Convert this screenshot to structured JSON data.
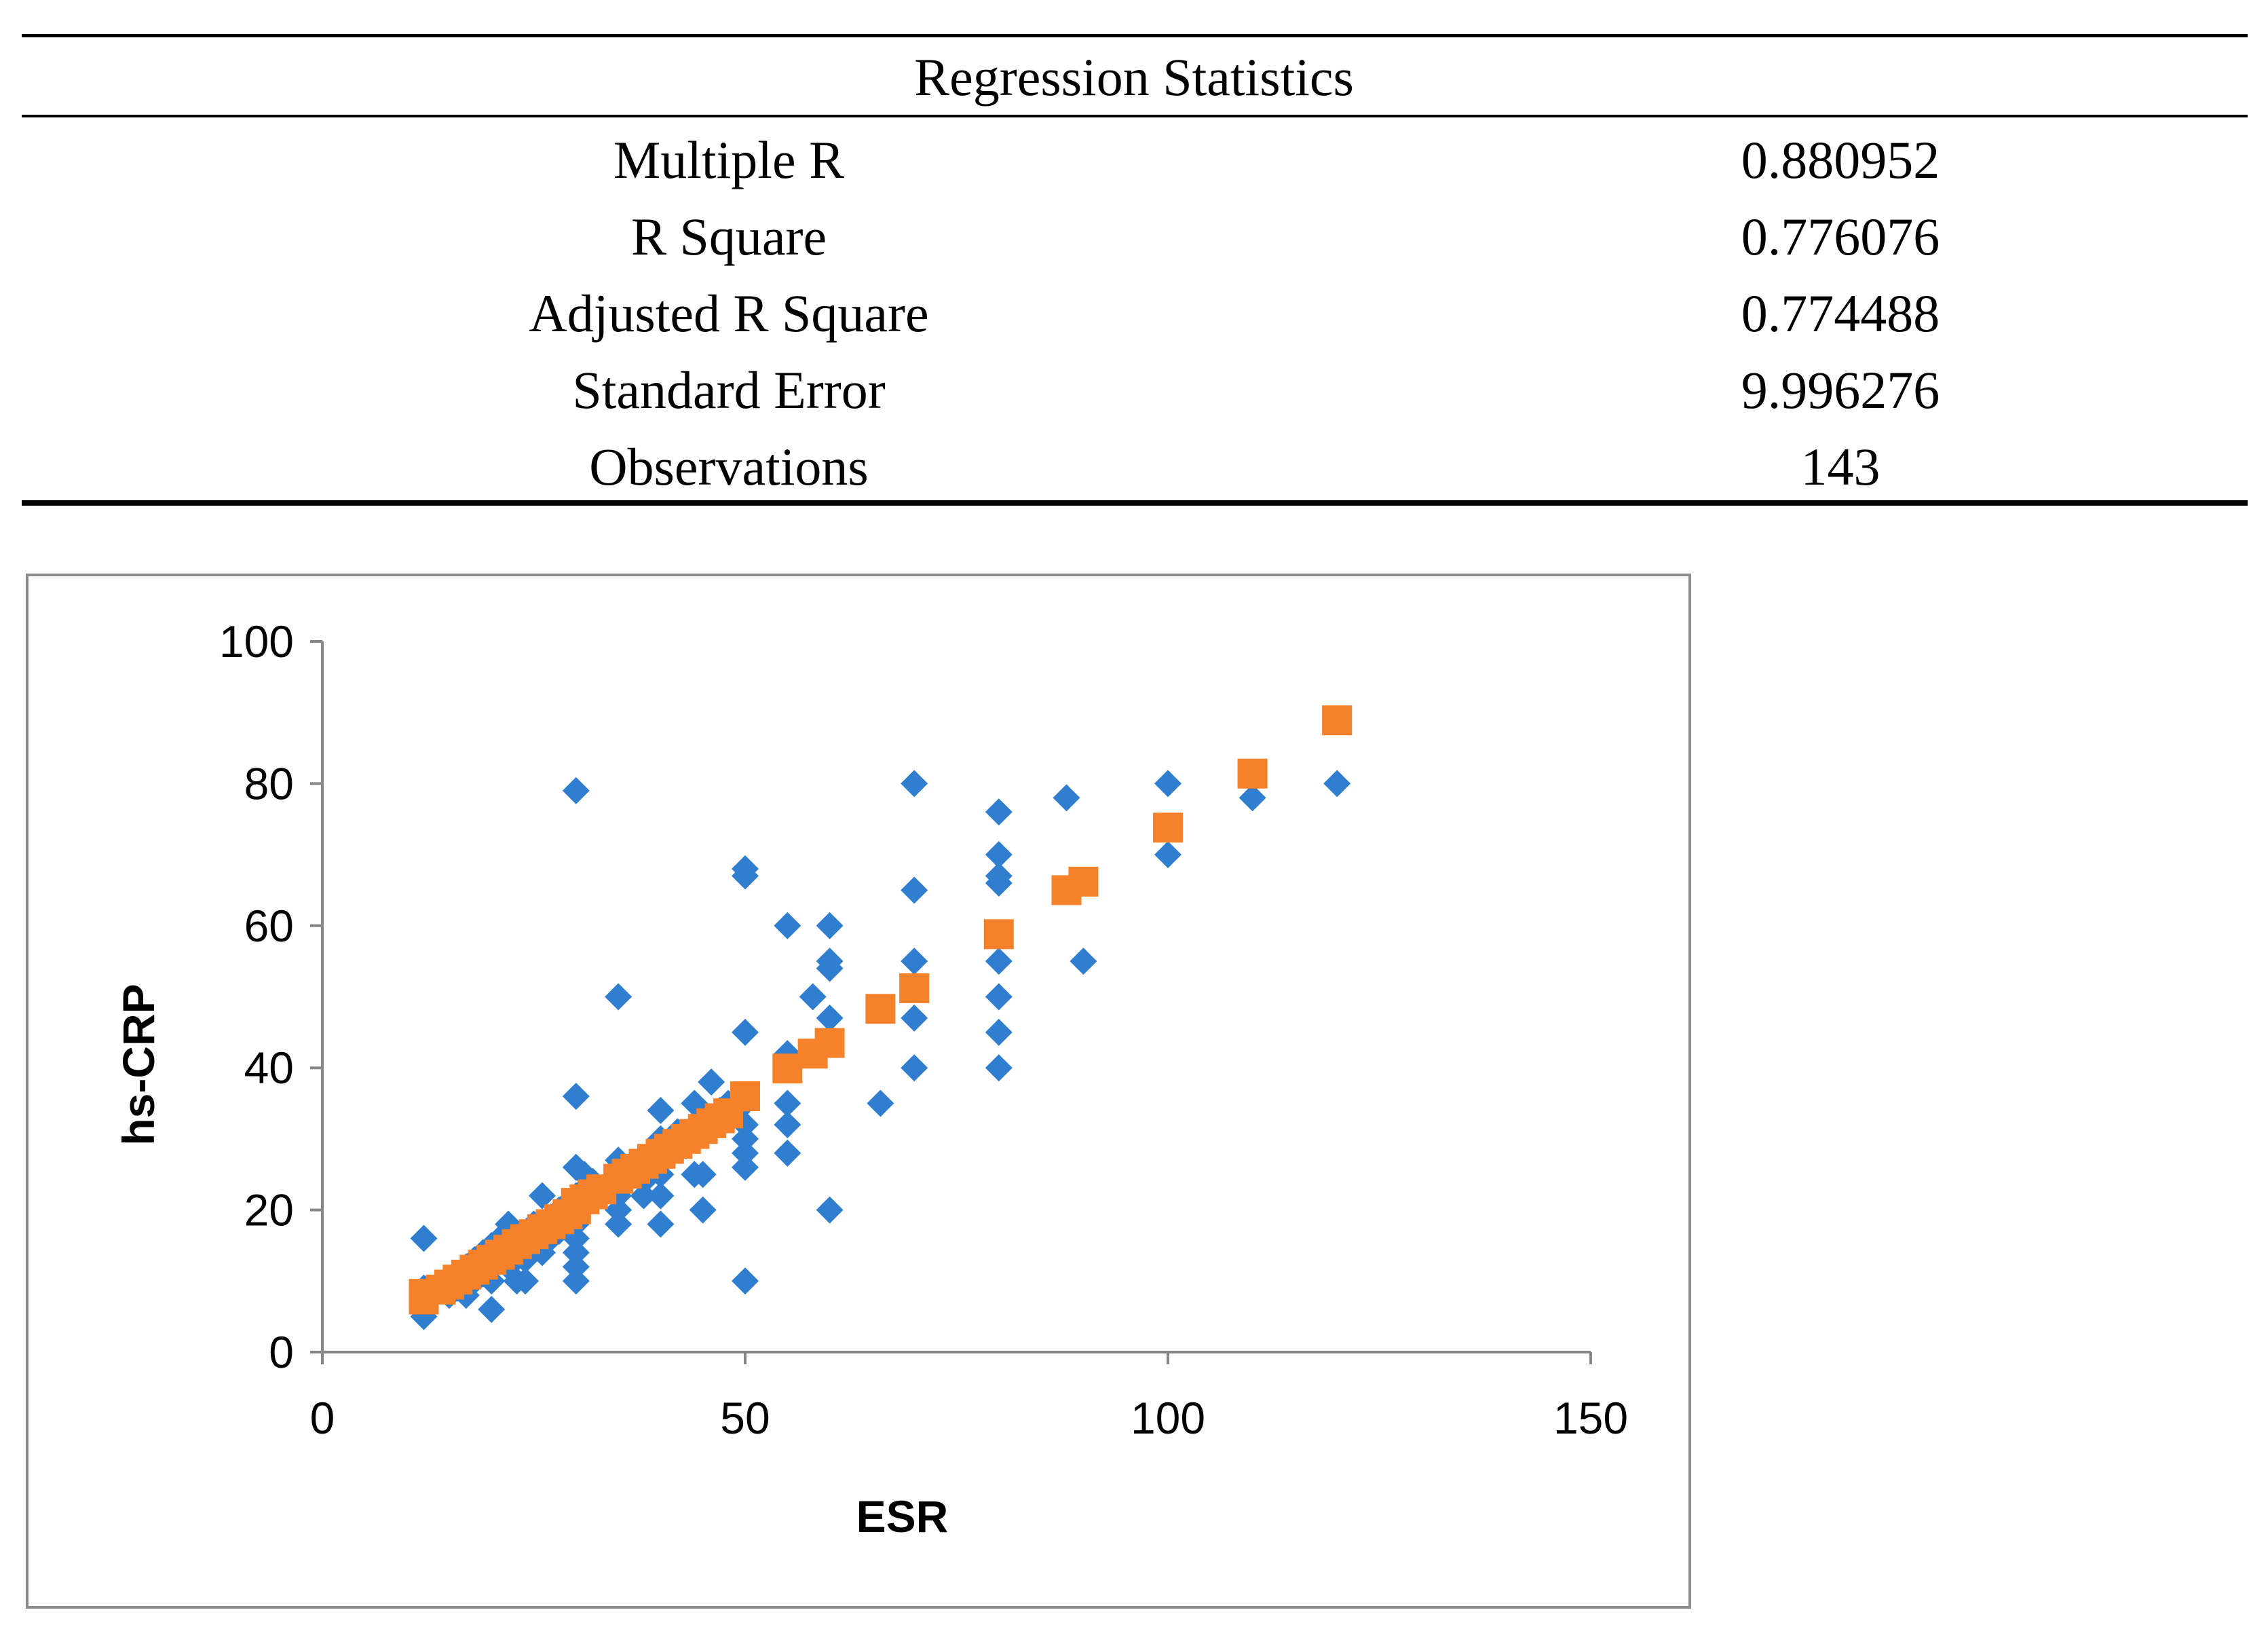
{
  "table": {
    "title": "Regression Statistics",
    "rows": [
      {
        "label": "Multiple R",
        "value": "0.880952"
      },
      {
        "label": "R Square",
        "value": "0.776076"
      },
      {
        "label": "Adjusted R Square",
        "value": "0.774488"
      },
      {
        "label": "Standard Error",
        "value": "9.996276"
      },
      {
        "label": "Observations",
        "value": "143"
      }
    ]
  },
  "chart_data": {
    "type": "scatter",
    "xlabel": "ESR",
    "ylabel": "hs-CRP",
    "xlim": [
      0,
      150
    ],
    "ylim": [
      0,
      100
    ],
    "x_ticks": [
      0,
      50,
      100,
      150
    ],
    "y_ticks": [
      0,
      20,
      40,
      60,
      80,
      100
    ],
    "grid": false,
    "series": [
      {
        "color": "#2f7ed0",
        "marker": "diamond",
        "points": [
          [
            12,
            5
          ],
          [
            12,
            7
          ],
          [
            12,
            9
          ],
          [
            12,
            16
          ],
          [
            13,
            8
          ],
          [
            14,
            9
          ],
          [
            15,
            10
          ],
          [
            15,
            8
          ],
          [
            16,
            11
          ],
          [
            16,
            9
          ],
          [
            17,
            12
          ],
          [
            17,
            8
          ],
          [
            18,
            13
          ],
          [
            18,
            10
          ],
          [
            19,
            14
          ],
          [
            19,
            11
          ],
          [
            20,
            15
          ],
          [
            20,
            12
          ],
          [
            20,
            6
          ],
          [
            20,
            10
          ],
          [
            21,
            16
          ],
          [
            21,
            13
          ],
          [
            22,
            17
          ],
          [
            22,
            12
          ],
          [
            22,
            18
          ],
          [
            23,
            10
          ],
          [
            23,
            14
          ],
          [
            24,
            16
          ],
          [
            24,
            13
          ],
          [
            24,
            10
          ],
          [
            25,
            18
          ],
          [
            25,
            15
          ],
          [
            26,
            22
          ],
          [
            26,
            17
          ],
          [
            26,
            14
          ],
          [
            27,
            19
          ],
          [
            27,
            16
          ],
          [
            28,
            20
          ],
          [
            28,
            17
          ],
          [
            29,
            21
          ],
          [
            29,
            18
          ],
          [
            30,
            22
          ],
          [
            30,
            26
          ],
          [
            30,
            20
          ],
          [
            30,
            18
          ],
          [
            30,
            16
          ],
          [
            30,
            14
          ],
          [
            30,
            12
          ],
          [
            30,
            10
          ],
          [
            30,
            36
          ],
          [
            30,
            79
          ],
          [
            31,
            23
          ],
          [
            31,
            25
          ],
          [
            32,
            22
          ],
          [
            32,
            24
          ],
          [
            33,
            23
          ],
          [
            34,
            24
          ],
          [
            35,
            27
          ],
          [
            35,
            25
          ],
          [
            35,
            22
          ],
          [
            35,
            20
          ],
          [
            35,
            18
          ],
          [
            35,
            50
          ],
          [
            36,
            26
          ],
          [
            36,
            24
          ],
          [
            37,
            25
          ],
          [
            38,
            26
          ],
          [
            38,
            24
          ],
          [
            38,
            22
          ],
          [
            39,
            27
          ],
          [
            40,
            28
          ],
          [
            40,
            34
          ],
          [
            40,
            30
          ],
          [
            40,
            25
          ],
          [
            40,
            22
          ],
          [
            40,
            18
          ],
          [
            41,
            29
          ],
          [
            42,
            30
          ],
          [
            42,
            31
          ],
          [
            43,
            29
          ],
          [
            44,
            35
          ],
          [
            44,
            30
          ],
          [
            44,
            25
          ],
          [
            45,
            33
          ],
          [
            45,
            25
          ],
          [
            45,
            20
          ],
          [
            46,
            38
          ],
          [
            47,
            34
          ],
          [
            48,
            35
          ],
          [
            48,
            33
          ],
          [
            50,
            32
          ],
          [
            50,
            30
          ],
          [
            50,
            28
          ],
          [
            50,
            26
          ],
          [
            50,
            35
          ],
          [
            50,
            45
          ],
          [
            50,
            67
          ],
          [
            50,
            68
          ],
          [
            50,
            10
          ],
          [
            55,
            42
          ],
          [
            55,
            35
          ],
          [
            55,
            32
          ],
          [
            55,
            28
          ],
          [
            55,
            60
          ],
          [
            58,
            50
          ],
          [
            60,
            60
          ],
          [
            60,
            55
          ],
          [
            60,
            54
          ],
          [
            60,
            47
          ],
          [
            60,
            20
          ],
          [
            66,
            35
          ],
          [
            70,
            80
          ],
          [
            70,
            65
          ],
          [
            70,
            55
          ],
          [
            70,
            47
          ],
          [
            70,
            40
          ],
          [
            80,
            76
          ],
          [
            80,
            70
          ],
          [
            80,
            67
          ],
          [
            80,
            66
          ],
          [
            80,
            55
          ],
          [
            80,
            50
          ],
          [
            80,
            45
          ],
          [
            80,
            40
          ],
          [
            88,
            78
          ],
          [
            90,
            55
          ],
          [
            100,
            80
          ],
          [
            100,
            70
          ],
          [
            110,
            78
          ],
          [
            120,
            80
          ]
        ]
      },
      {
        "color": "#f5822a",
        "marker": "square",
        "points": [
          [
            12,
            7.4
          ],
          [
            12,
            8.2
          ],
          [
            14,
            8.8
          ],
          [
            15,
            9.5
          ],
          [
            16,
            10.2
          ],
          [
            17,
            10.9
          ],
          [
            18,
            11.6
          ],
          [
            19,
            12.3
          ],
          [
            20,
            13.0
          ],
          [
            21,
            13.7
          ],
          [
            22,
            14.4
          ],
          [
            23,
            15.2
          ],
          [
            24,
            15.9
          ],
          [
            25,
            16.6
          ],
          [
            26,
            17.3
          ],
          [
            27,
            18.0
          ],
          [
            28,
            18.7
          ],
          [
            29,
            19.4
          ],
          [
            30,
            20.1
          ],
          [
            30,
            21.0
          ],
          [
            31,
            21.5
          ],
          [
            32,
            22.2
          ],
          [
            33,
            22.9
          ],
          [
            35,
            24.4
          ],
          [
            36,
            25.1
          ],
          [
            37,
            25.8
          ],
          [
            38,
            26.5
          ],
          [
            39,
            27.2
          ],
          [
            40,
            27.9
          ],
          [
            41,
            28.6
          ],
          [
            42,
            29.3
          ],
          [
            43,
            30.0
          ],
          [
            44,
            30.7
          ],
          [
            45,
            31.4
          ],
          [
            46,
            32.2
          ],
          [
            47,
            32.9
          ],
          [
            48,
            33.6
          ],
          [
            50,
            36.0
          ],
          [
            55,
            39.9
          ],
          [
            58,
            42.0
          ],
          [
            60,
            43.5
          ],
          [
            66,
            48.3
          ],
          [
            70,
            51.2
          ],
          [
            80,
            58.8
          ],
          [
            88,
            65.0
          ],
          [
            90,
            66.2
          ],
          [
            100,
            73.8
          ],
          [
            110,
            81.4
          ],
          [
            120,
            88.9
          ]
        ]
      }
    ]
  }
}
